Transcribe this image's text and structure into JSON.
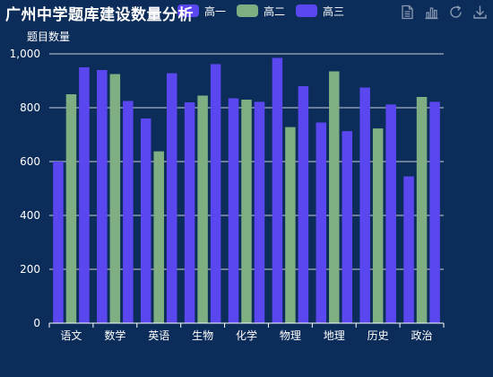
{
  "chart_data": {
    "type": "bar",
    "title": "广州中学题库建设数量分析",
    "ylabel": "题目数量",
    "xlabel": "",
    "categories": [
      "语文",
      "数学",
      "英语",
      "生物",
      "化学",
      "物理",
      "地理",
      "历史",
      "政治"
    ],
    "series": [
      {
        "name": "高一",
        "color": "#5b47f0",
        "values": [
          600,
          940,
          760,
          820,
          835,
          985,
          745,
          875,
          545
        ]
      },
      {
        "name": "高二",
        "color": "#7fae82",
        "values": [
          850,
          925,
          638,
          845,
          830,
          728,
          935,
          723,
          840
        ]
      },
      {
        "name": "高三",
        "color": "#5b47f0",
        "values": [
          950,
          825,
          928,
          962,
          822,
          880,
          713,
          812,
          822
        ]
      }
    ],
    "ylim": [
      0,
      1000
    ],
    "yticks": [
      "0",
      "200",
      "400",
      "600",
      "800",
      "1,000"
    ],
    "grid": true,
    "legend_position": "top-center"
  },
  "toolbox": {
    "icons": [
      "data-view-icon",
      "bar-chart-icon",
      "restore-icon",
      "download-icon"
    ]
  }
}
